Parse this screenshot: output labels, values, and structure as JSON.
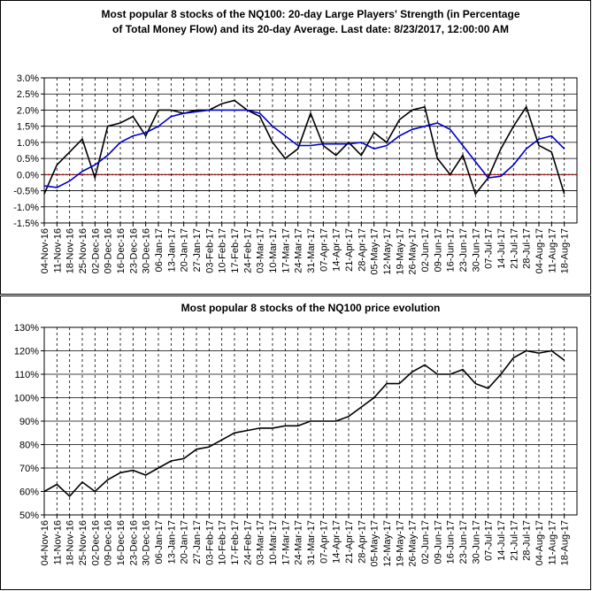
{
  "chart_data": [
    {
      "type": "line",
      "title": [
        "Most popular 8 stocks of the NQ100: 20-day Large Players' Strength (in Percentage",
        "of Total Money Flow) and its 20-day Average. Last date: 8/23/2017, 12:00:00 AM"
      ],
      "categories": [
        "04-Nov-16",
        "11-Nov-16",
        "18-Nov-16",
        "25-Nov-16",
        "02-Dec-16",
        "09-Dec-16",
        "16-Dec-16",
        "23-Dec-16",
        "30-Dec-16",
        "06-Jan-17",
        "13-Jan-17",
        "20-Jan-17",
        "27-Jan-17",
        "03-Feb-17",
        "10-Feb-17",
        "17-Feb-17",
        "24-Feb-17",
        "03-Mar-17",
        "10-Mar-17",
        "17-Mar-17",
        "24-Mar-17",
        "31-Mar-17",
        "07-Apr-17",
        "14-Apr-17",
        "21-Apr-17",
        "28-Apr-17",
        "05-May-17",
        "12-May-17",
        "19-May-17",
        "26-May-17",
        "02-Jun-17",
        "09-Jun-17",
        "16-Jun-17",
        "23-Jun-17",
        "30-Jun-17",
        "07-Jul-17",
        "14-Jul-17",
        "21-Jul-17",
        "28-Jul-17",
        "04-Aug-17",
        "11-Aug-17",
        "18-Aug-17"
      ],
      "series": [
        {
          "name": "Strength",
          "color": "#000000",
          "values": [
            -0.6,
            0.3,
            0.7,
            1.1,
            -0.1,
            1.5,
            1.6,
            1.8,
            1.2,
            2.0,
            2.0,
            1.9,
            2.0,
            2.0,
            2.2,
            2.3,
            2.0,
            1.8,
            1.0,
            0.5,
            0.8,
            1.9,
            0.9,
            0.6,
            1.0,
            0.6,
            1.3,
            1.0,
            1.7,
            2.0,
            2.1,
            0.5,
            0.0,
            0.6,
            -0.6,
            -0.1,
            0.8,
            1.5,
            2.1,
            0.9,
            0.7,
            -0.6
          ]
        },
        {
          "name": "20-day Average",
          "color": "#0000cc",
          "values": [
            -0.35,
            -0.4,
            -0.2,
            0.1,
            0.3,
            0.6,
            1.0,
            1.2,
            1.3,
            1.5,
            1.8,
            1.9,
            1.95,
            2.0,
            2.0,
            2.0,
            2.0,
            1.9,
            1.5,
            1.2,
            0.9,
            0.9,
            0.95,
            0.95,
            0.95,
            1.0,
            0.8,
            0.9,
            1.2,
            1.4,
            1.5,
            1.6,
            1.4,
            0.9,
            0.4,
            -0.1,
            -0.05,
            0.3,
            0.8,
            1.1,
            1.2,
            0.8
          ]
        }
      ],
      "ref_line": {
        "value": 0,
        "color": "#cc0000"
      },
      "ylim": [
        -1.5,
        3
      ],
      "yticks": [
        {
          "value": -1.5,
          "label": "-1.5%"
        },
        {
          "value": -1,
          "label": "-1.0%"
        },
        {
          "value": -0.5,
          "label": "-0.5%"
        },
        {
          "value": 0,
          "label": "0.0%"
        },
        {
          "value": 0.5,
          "label": "0.5%"
        },
        {
          "value": 1,
          "label": "1.0%"
        },
        {
          "value": 1.5,
          "label": "1.5%"
        },
        {
          "value": 2,
          "label": "2.0%"
        },
        {
          "value": 2.5,
          "label": "2.5%"
        },
        {
          "value": 3,
          "label": "3.0%"
        }
      ],
      "grid": true
    },
    {
      "type": "line",
      "title": [
        "Most popular 8 stocks of the NQ100 price evolution"
      ],
      "categories": [
        "04-Nov-16",
        "11-Nov-16",
        "18-Nov-16",
        "25-Nov-16",
        "02-Dec-16",
        "09-Dec-16",
        "16-Dec-16",
        "23-Dec-16",
        "30-Dec-16",
        "06-Jan-17",
        "13-Jan-17",
        "20-Jan-17",
        "27-Jan-17",
        "03-Feb-17",
        "10-Feb-17",
        "17-Feb-17",
        "24-Feb-17",
        "03-Mar-17",
        "10-Mar-17",
        "17-Mar-17",
        "24-Mar-17",
        "31-Mar-17",
        "07-Apr-17",
        "14-Apr-17",
        "21-Apr-17",
        "28-Apr-17",
        "05-May-17",
        "12-May-17",
        "19-May-17",
        "26-May-17",
        "02-Jun-17",
        "09-Jun-17",
        "16-Jun-17",
        "23-Jun-17",
        "30-Jun-17",
        "07-Jul-17",
        "14-Jul-17",
        "21-Jul-17",
        "28-Jul-17",
        "04-Aug-17",
        "11-Aug-17",
        "18-Aug-17"
      ],
      "series": [
        {
          "name": "Price",
          "color": "#000000",
          "values": [
            60,
            63,
            58,
            64,
            60,
            65,
            68,
            69,
            67,
            70,
            73,
            74,
            78,
            79,
            82,
            85,
            86,
            87,
            87,
            88,
            88,
            90,
            90,
            90,
            92,
            96,
            100,
            106,
            106,
            111,
            114,
            110,
            110,
            112,
            106,
            104,
            110,
            117,
            120,
            119,
            120,
            116
          ]
        }
      ],
      "ylim": [
        50,
        130
      ],
      "yticks": [
        {
          "value": 50,
          "label": "50%"
        },
        {
          "value": 60,
          "label": "60%"
        },
        {
          "value": 70,
          "label": "70%"
        },
        {
          "value": 80,
          "label": "80%"
        },
        {
          "value": 90,
          "label": "90%"
        },
        {
          "value": 100,
          "label": "100%"
        },
        {
          "value": 110,
          "label": "110%"
        },
        {
          "value": 120,
          "label": "120%"
        },
        {
          "value": 130,
          "label": "130%"
        }
      ],
      "grid": true
    }
  ]
}
